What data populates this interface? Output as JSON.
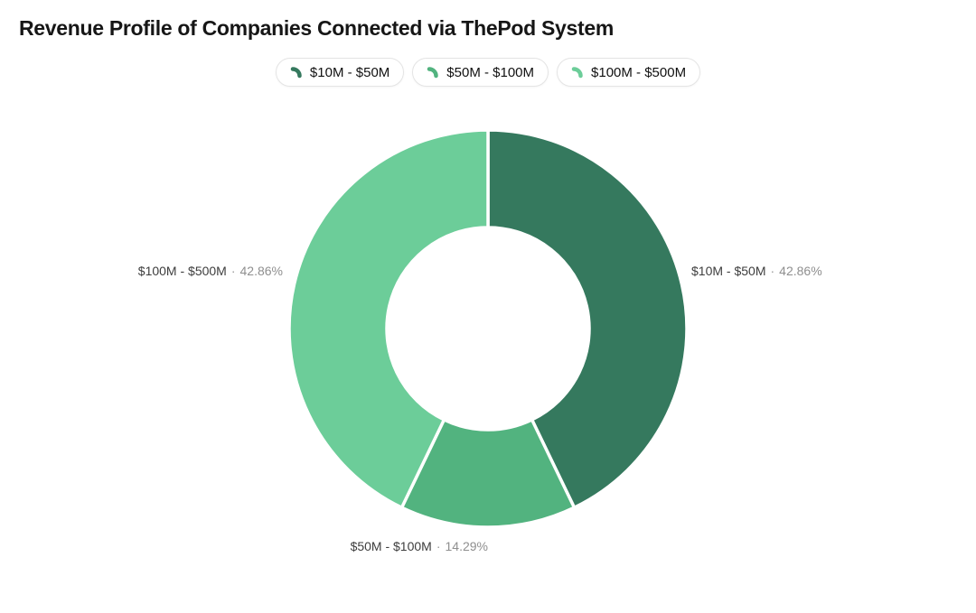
{
  "chart_data": {
    "type": "pie",
    "subtype": "donut",
    "title": "Revenue Profile of Companies Connected via ThePod System",
    "legend_position": "top",
    "label_separator": "·",
    "inner_radius_ratio": 0.51,
    "background_color": "#ffffff",
    "slice_border_color": "#ffffff",
    "categories": [
      "$10M - $50M",
      "$50M - $100M",
      "$100M - $500M"
    ],
    "values": [
      42.86,
      14.29,
      42.86
    ],
    "segments": [
      {
        "label": "$10M - $50M",
        "value": 42.86,
        "display_pct": "42.86%",
        "color": "#35795e"
      },
      {
        "label": "$50M - $100M",
        "value": 14.29,
        "display_pct": "14.29%",
        "color": "#52b37f"
      },
      {
        "label": "$100M - $500M",
        "value": 42.86,
        "display_pct": "42.86%",
        "color": "#6ccd99"
      }
    ]
  }
}
